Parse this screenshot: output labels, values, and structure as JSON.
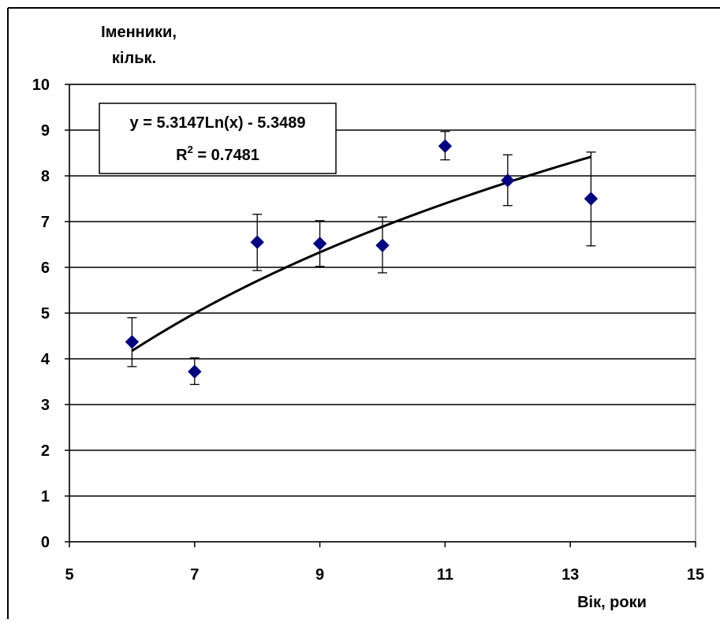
{
  "chart_data": {
    "type": "scatter",
    "ylabel_line1": "Іменники,",
    "ylabel_line2": "кільк.",
    "xlabel": "Вік, роки",
    "xlim": [
      5,
      15
    ],
    "ylim": [
      0,
      10
    ],
    "xticks": [
      5,
      7,
      9,
      11,
      13,
      15
    ],
    "yticks": [
      0,
      1,
      2,
      3,
      4,
      5,
      6,
      7,
      8,
      9,
      10
    ],
    "xtick_labels": [
      "5",
      "7",
      "9",
      "11",
      "13",
      "15"
    ],
    "ytick_labels": [
      "0",
      "1",
      "2",
      "3",
      "4",
      "5",
      "6",
      "7",
      "8",
      "9",
      "10"
    ],
    "grid": "horizontal",
    "series": [
      {
        "marker": "diamond",
        "color": "#000080",
        "points": [
          {
            "x": 6.0,
            "y": 4.37,
            "err_low": 3.83,
            "err_high": 4.9
          },
          {
            "x": 7.0,
            "y": 3.72,
            "err_low": 3.44,
            "err_high": 4.02
          },
          {
            "x": 8.0,
            "y": 6.55,
            "err_low": 5.93,
            "err_high": 7.16
          },
          {
            "x": 9.0,
            "y": 6.52,
            "err_low": 6.02,
            "err_high": 7.02
          },
          {
            "x": 10.0,
            "y": 6.48,
            "err_low": 5.88,
            "err_high": 7.1
          },
          {
            "x": 11.0,
            "y": 8.65,
            "err_low": 8.35,
            "err_high": 8.97
          },
          {
            "x": 12.0,
            "y": 7.9,
            "err_low": 7.35,
            "err_high": 8.46
          },
          {
            "x": 13.33,
            "y": 7.5,
            "err_low": 6.47,
            "err_high": 8.52
          }
        ]
      }
    ],
    "trendline": {
      "type": "logarithmic",
      "a": 5.3147,
      "b": -5.3489,
      "x_start": 6.0,
      "x_end": 13.33,
      "color": "#000000"
    },
    "equation_label": "y = 5.3147Ln(x) - 5.3489",
    "r2_prefix": "R",
    "r2_sup": "2",
    "r2_value": " = 0.7481"
  }
}
